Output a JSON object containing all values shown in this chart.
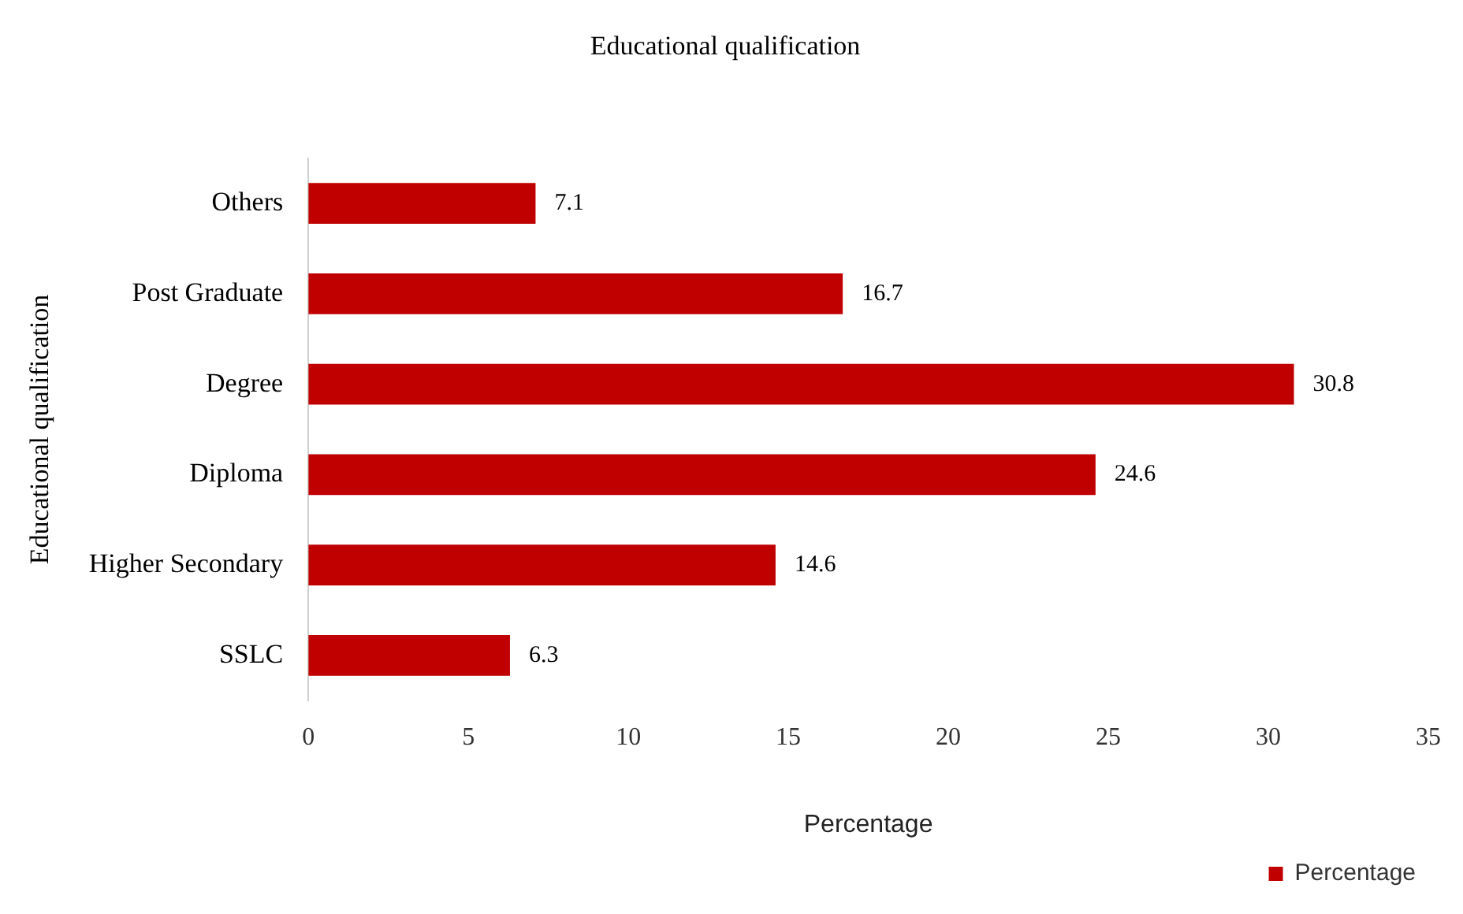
{
  "chart_data": {
    "type": "bar",
    "orientation": "horizontal",
    "title": "Educational qualification",
    "xlabel": "Percentage",
    "ylabel": "Educational qualification",
    "categories": [
      "Others",
      "Post Graduate",
      "Degree",
      "Diploma",
      "Higher Secondary",
      "SSLC"
    ],
    "series": [
      {
        "name": "Percentage",
        "color": "#c00000",
        "values": [
          7.1,
          16.7,
          30.8,
          24.6,
          14.6,
          6.3
        ]
      }
    ],
    "xlim": [
      0,
      35
    ],
    "xticks": [
      0,
      5,
      10,
      15,
      20,
      25,
      30,
      35
    ],
    "grid": false,
    "legend": "bottom right",
    "data_labels": true
  }
}
